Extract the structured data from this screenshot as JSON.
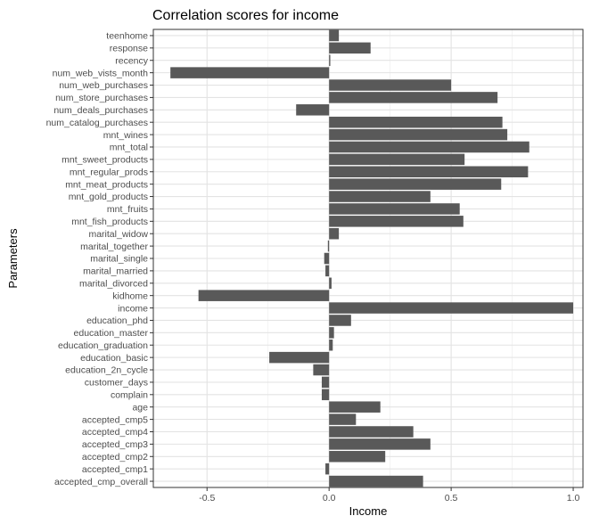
{
  "chart_data": {
    "type": "bar",
    "orientation": "horizontal",
    "title": "Correlation scores for income",
    "xlabel": "Income",
    "ylabel": "Parameters",
    "xlim": [
      -0.72,
      1.04
    ],
    "xticks": [
      -0.5,
      0.0,
      0.5,
      1.0
    ],
    "xtick_labels": [
      "-0.5",
      "0.0",
      "0.5",
      "1.0"
    ],
    "grid": true,
    "bar_color": "#595959",
    "categories": [
      "teenhome",
      "response",
      "recency",
      "num_web_vists_month",
      "num_web_purchases",
      "num_store_purchases",
      "num_deals_purchases",
      "num_catalog_purchases",
      "mnt_wines",
      "mnt_total",
      "mnt_sweet_products",
      "mnt_regular_prods",
      "mnt_meat_products",
      "mnt_gold_products",
      "mnt_fruits",
      "mnt_fish_products",
      "marital_widow",
      "marital_together",
      "marital_single",
      "marital_married",
      "marital_divorced",
      "kidhome",
      "income",
      "education_phd",
      "education_master",
      "education_graduation",
      "education_basic",
      "education_2n_cycle",
      "customer_days",
      "complain",
      "age",
      "accepted_cmp5",
      "accepted_cmp4",
      "accepted_cmp3",
      "accepted_cmp2",
      "accepted_cmp1",
      "accepted_cmp_overall"
    ],
    "values": [
      0.04,
      0.17,
      0.005,
      -0.65,
      0.5,
      0.69,
      -0.135,
      0.71,
      0.73,
      0.82,
      0.555,
      0.815,
      0.705,
      0.415,
      0.535,
      0.55,
      0.04,
      -0.005,
      -0.02,
      -0.015,
      0.01,
      -0.535,
      1.0,
      0.09,
      0.02,
      0.015,
      -0.245,
      -0.065,
      -0.03,
      -0.03,
      0.21,
      0.11,
      0.345,
      0.415,
      0.23,
      -0.015,
      0.385
    ]
  }
}
